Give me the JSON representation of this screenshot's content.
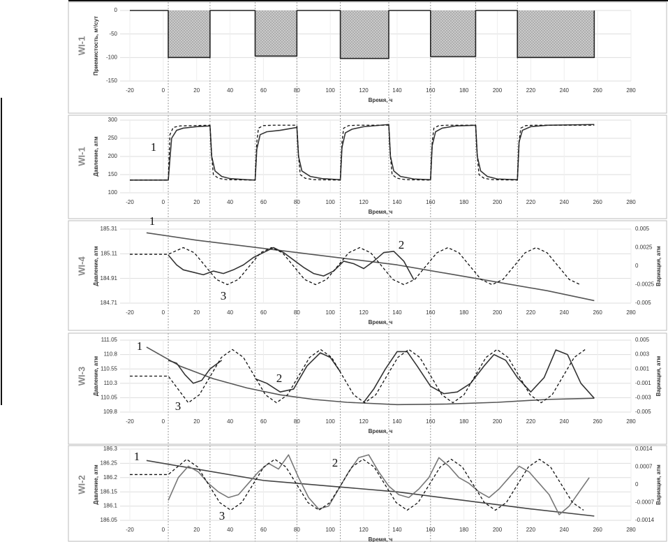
{
  "switch_times": [
    3,
    28,
    55,
    80,
    106,
    135,
    160,
    187,
    212
  ],
  "chart_data": [
    {
      "type": "line",
      "well": "WI-1",
      "ylabel": "Приемистость, м³/сут",
      "xlabel": "Время, ч",
      "xlim": [
        -20,
        280
      ],
      "xticks": [
        -20,
        0,
        20,
        40,
        60,
        80,
        100,
        120,
        140,
        160,
        180,
        200,
        220,
        240,
        260,
        280
      ],
      "ylim": [
        -150,
        0
      ],
      "yticks": [
        0,
        -50,
        -100,
        -150
      ],
      "grid": true,
      "series": [
        {
          "color": "#222222",
          "area": true,
          "x": [
            -20,
            3,
            3,
            28,
            28,
            55,
            55,
            80,
            80,
            106,
            106,
            135,
            135,
            160,
            160,
            187,
            187,
            212,
            212,
            258,
            258
          ],
          "values": [
            0,
            0,
            -100,
            -100,
            0,
            0,
            -97,
            -97,
            0,
            0,
            -102,
            -102,
            0,
            0,
            -98,
            -98,
            0,
            0,
            -100,
            -100,
            0
          ]
        }
      ]
    },
    {
      "type": "line",
      "well": "WI-1",
      "ylabel": "Давление, атм",
      "xlabel": "Время, ч",
      "xlim": [
        -20,
        280
      ],
      "xticks": [
        -20,
        0,
        20,
        40,
        60,
        80,
        100,
        120,
        140,
        160,
        180,
        200,
        220,
        240,
        260,
        280
      ],
      "ylim": [
        100,
        300
      ],
      "yticks": [
        100,
        150,
        200,
        250,
        300
      ],
      "grid": true,
      "series": [
        {
          "name": "1",
          "color": "#333333",
          "x": [
            -20,
            3,
            5,
            8,
            12,
            20,
            28,
            29,
            31,
            35,
            40,
            50,
            55,
            56,
            58,
            62,
            70,
            80,
            81,
            83,
            88,
            95,
            106,
            107,
            109,
            113,
            120,
            135,
            136,
            138,
            142,
            150,
            160,
            161,
            163,
            167,
            175,
            187,
            188,
            190,
            194,
            200,
            212,
            213,
            215,
            220,
            230,
            258
          ],
          "values": [
            135,
            135,
            250,
            272,
            278,
            282,
            284,
            200,
            160,
            145,
            139,
            136,
            135,
            220,
            260,
            268,
            272,
            280,
            200,
            160,
            145,
            139,
            136,
            225,
            265,
            275,
            282,
            288,
            200,
            160,
            145,
            138,
            136,
            230,
            268,
            278,
            284,
            286,
            200,
            160,
            145,
            138,
            136,
            240,
            272,
            282,
            286,
            288
          ]
        },
        {
          "color": "#111111",
          "dash": true,
          "x": [
            -20,
            3,
            4,
            6,
            10,
            28,
            29,
            30,
            33,
            38,
            55,
            56,
            57,
            60,
            66,
            80,
            81,
            82,
            85,
            90,
            106,
            107,
            108,
            111,
            116,
            135,
            136,
            137,
            140,
            145,
            160,
            161,
            162,
            165,
            170,
            187,
            188,
            189,
            192,
            197,
            212,
            213,
            214,
            217,
            222,
            258
          ],
          "values": [
            135,
            135,
            260,
            280,
            284,
            286,
            200,
            150,
            140,
            136,
            135,
            240,
            278,
            285,
            286,
            286,
            200,
            150,
            140,
            136,
            135,
            240,
            278,
            285,
            286,
            286,
            200,
            150,
            140,
            136,
            135,
            240,
            278,
            285,
            286,
            286,
            200,
            150,
            140,
            136,
            135,
            240,
            278,
            285,
            286,
            286
          ]
        }
      ]
    },
    {
      "type": "line",
      "well": "WI-4",
      "ylabel": "Давление, атм",
      "y2label": "Вариация, атм",
      "xlabel": "Время, ч",
      "xlim": [
        -20,
        280
      ],
      "xticks": [
        -20,
        0,
        20,
        40,
        60,
        80,
        100,
        120,
        140,
        160,
        180,
        200,
        220,
        240,
        260,
        280
      ],
      "ylim": [
        184.71,
        185.31
      ],
      "yticks": [
        185.31,
        185.11,
        184.91,
        184.71
      ],
      "y2lim": [
        -0.005,
        0.005
      ],
      "y2ticks": [
        0.005,
        0.0025,
        0,
        -0.0025,
        -0.005
      ],
      "grid": true,
      "series": [
        {
          "name": "1",
          "color": "#555555",
          "x": [
            -10,
            20,
            50,
            80,
            110,
            140,
            170,
            200,
            230,
            258
          ],
          "values": [
            185.28,
            185.22,
            185.17,
            185.12,
            185.07,
            185.02,
            184.95,
            184.88,
            184.81,
            184.73
          ]
        },
        {
          "name": "2",
          "color": "#333333",
          "x": [
            3,
            8,
            12,
            18,
            24,
            30,
            36,
            42,
            48,
            54,
            60,
            66,
            72,
            78,
            84,
            90,
            96,
            102,
            108,
            114,
            120,
            126,
            132,
            138,
            144,
            150
          ],
          "values": [
            185.1,
            185.02,
            184.98,
            184.96,
            184.94,
            184.97,
            184.95,
            184.98,
            185.02,
            185.08,
            185.12,
            185.16,
            185.12,
            185.06,
            185.0,
            184.95,
            184.93,
            184.97,
            185.05,
            185.03,
            184.99,
            185.05,
            185.12,
            185.13,
            185.05,
            184.9
          ]
        },
        {
          "name": "3",
          "color": "#111111",
          "dash": true,
          "axis": "y2",
          "x": [
            -20,
            3,
            12,
            18.6,
            25.2,
            31.8,
            38.4,
            45,
            51.6,
            58.2,
            64.8,
            71.4,
            78,
            84.6,
            91.2,
            97.8,
            104.4,
            111,
            117.6,
            124.2,
            130.8,
            137.4,
            144,
            150.6,
            157.2,
            163.8,
            170.4,
            177,
            183.6,
            190.2,
            196.8,
            203.4,
            210,
            216.6,
            223.2,
            229.8,
            236.4,
            243,
            249.6
          ],
          "values": [
            0.0016,
            0.0016,
            0.0025,
            0.0018,
            0,
            -0.0018,
            -0.0025,
            -0.0018,
            0,
            0.0018,
            0.0025,
            0.0018,
            0,
            -0.0018,
            -0.0025,
            -0.0018,
            0,
            0.0018,
            0.0025,
            0.0018,
            0,
            -0.0018,
            -0.0025,
            -0.0018,
            0,
            0.0018,
            0.0025,
            0.0018,
            0,
            -0.0018,
            -0.0025,
            -0.0018,
            0,
            0.0018,
            0.0025,
            0.0018,
            0,
            -0.0018,
            -0.0025
          ]
        }
      ]
    },
    {
      "type": "line",
      "well": "WI-3",
      "ylabel": "Давление, атм",
      "y2label": "Вариация, атм",
      "xlabel": "Время, ч",
      "xlim": [
        -20,
        280
      ],
      "xticks": [
        -20,
        0,
        20,
        40,
        60,
        80,
        100,
        120,
        140,
        160,
        180,
        200,
        220,
        240,
        260,
        280
      ],
      "ylim": [
        109.8,
        111.05
      ],
      "yticks": [
        111.05,
        110.8,
        110.55,
        110.3,
        110.05,
        109.8
      ],
      "y2lim": [
        -0.005,
        0.005
      ],
      "y2ticks": [
        0.005,
        0.003,
        0.001,
        -0.001,
        -0.003,
        -0.005
      ],
      "grid": true,
      "series": [
        {
          "name": "1",
          "color": "#555555",
          "x": [
            -10,
            10,
            30,
            50,
            70,
            90,
            110,
            140,
            170,
            200,
            230,
            258
          ],
          "values": [
            110.93,
            110.6,
            110.38,
            110.22,
            110.1,
            110.02,
            109.97,
            109.93,
            109.94,
            109.97,
            110.02,
            110.04
          ]
        },
        {
          "name": "2",
          "color": "#333333",
          "x": [
            3,
            8,
            13,
            18,
            23,
            28,
            35,
            45,
            55,
            62,
            70,
            78,
            86,
            94,
            100,
            106,
            113,
            120,
            126,
            133,
            140,
            146,
            152,
            160,
            168,
            176,
            184,
            192,
            198,
            205,
            212,
            220,
            228,
            235,
            242,
            250,
            258
          ],
          "values": [
            110.7,
            110.65,
            110.45,
            110.3,
            110.35,
            110.55,
            110.7,
            null,
            110.38,
            110.3,
            110.15,
            110.2,
            110.6,
            110.83,
            110.75,
            110.5,
            null,
            109.97,
            110.2,
            110.55,
            110.85,
            110.85,
            110.6,
            110.25,
            110.12,
            110.15,
            110.3,
            110.6,
            110.8,
            110.7,
            110.4,
            110.15,
            110.4,
            110.88,
            110.8,
            110.3,
            110.04
          ]
        },
        {
          "name": "3",
          "color": "#111111",
          "dash": true,
          "axis": "y2",
          "x": [
            -20,
            3,
            15,
            21.6,
            28.2,
            34.8,
            41.4,
            48,
            54.6,
            61.2,
            67.8,
            74.4,
            81,
            87.6,
            94.2,
            100.8,
            107.4,
            114,
            120.6,
            127.2,
            133.8,
            140.4,
            147,
            153.6,
            160.2,
            166.8,
            173.4,
            180,
            186.6,
            193.2,
            199.8,
            206.4,
            213,
            219.6,
            226.2,
            232.8,
            239.4,
            246,
            252.6
          ],
          "values": [
            0,
            0,
            -0.0037,
            -0.0026,
            0,
            0.0026,
            0.0037,
            0.0026,
            0,
            -0.0026,
            -0.0037,
            -0.0026,
            0,
            0.0026,
            0.0037,
            0.0026,
            0,
            -0.0026,
            -0.0037,
            -0.0026,
            0,
            0.0026,
            0.0037,
            0.0026,
            0,
            -0.0026,
            -0.0037,
            -0.0026,
            0,
            0.0026,
            0.0037,
            0.0026,
            0,
            -0.0026,
            -0.0037,
            -0.0026,
            0,
            0.0026,
            0.0037
          ]
        }
      ]
    },
    {
      "type": "line",
      "well": "WI-2",
      "ylabel": "Давление, атм",
      "y2label": "Вариация, атм",
      "xlabel": "Время, ч",
      "xlim": [
        -20,
        280
      ],
      "xticks": [
        -20,
        0,
        20,
        40,
        60,
        80,
        100,
        120,
        140,
        160,
        180,
        200,
        220,
        240,
        260,
        280
      ],
      "ylim": [
        186.05,
        186.3
      ],
      "yticks": [
        186.3,
        186.25,
        186.2,
        186.15,
        186.1,
        186.05
      ],
      "y2lim": [
        -0.0014,
        0.0014
      ],
      "y2ticks": [
        0.0014,
        0.0007,
        0,
        -0.0007,
        -0.0014
      ],
      "grid": true,
      "series": [
        {
          "name": "1",
          "color": "#444444",
          "x": [
            -10,
            20,
            60,
            100,
            140,
            180,
            220,
            258
          ],
          "values": [
            186.26,
            186.23,
            186.19,
            186.17,
            186.15,
            186.12,
            186.09,
            186.065
          ]
        },
        {
          "name": "2",
          "color": "#777777",
          "x": [
            3,
            9,
            15,
            21,
            27,
            33,
            39,
            45,
            51,
            57,
            63,
            69,
            75,
            81,
            87,
            93,
            99,
            105,
            111,
            117,
            123,
            129,
            135,
            141,
            147,
            153,
            159,
            165,
            171,
            177,
            183,
            189,
            195,
            201,
            207,
            213,
            219,
            225,
            231,
            237,
            243,
            249,
            255
          ],
          "values": [
            186.12,
            186.2,
            186.24,
            186.22,
            186.18,
            186.15,
            186.13,
            186.14,
            186.18,
            186.22,
            186.25,
            186.23,
            186.28,
            186.2,
            186.13,
            186.09,
            186.1,
            186.16,
            186.22,
            186.27,
            186.28,
            186.22,
            186.17,
            186.14,
            186.13,
            186.16,
            186.2,
            186.27,
            186.24,
            186.2,
            186.18,
            186.15,
            186.13,
            186.16,
            186.2,
            186.24,
            186.22,
            186.18,
            186.14,
            186.07,
            186.1,
            186.15,
            186.2
          ]
        },
        {
          "name": "3",
          "color": "#111111",
          "dash": true,
          "axis": "y2",
          "x": [
            -20,
            3,
            14,
            20.6,
            27.2,
            33.8,
            40.4,
            47,
            53.6,
            60.2,
            66.8,
            73.4,
            80,
            86.6,
            93.2,
            99.8,
            106.4,
            113,
            119.6,
            126.2,
            132.8,
            139.4,
            146,
            152.6,
            159.2,
            165.8,
            172.4,
            179,
            185.6,
            192.2,
            198.8,
            205.4,
            212,
            218.6,
            225.2,
            231.8,
            238.4,
            245,
            251.6
          ],
          "values": [
            0.0004,
            0.0004,
            0.001,
            0.0007,
            0,
            -0.0007,
            -0.001,
            -0.0007,
            0,
            0.0007,
            0.001,
            0.0007,
            0,
            -0.0007,
            -0.001,
            -0.0007,
            0,
            0.0007,
            0.001,
            0.0007,
            0,
            -0.0007,
            -0.001,
            -0.0007,
            0,
            0.0007,
            0.001,
            0.0007,
            0,
            -0.0007,
            -0.001,
            -0.0007,
            0,
            0.0007,
            0.001,
            0.0007,
            0,
            -0.0007,
            -0.001
          ]
        }
      ]
    }
  ]
}
